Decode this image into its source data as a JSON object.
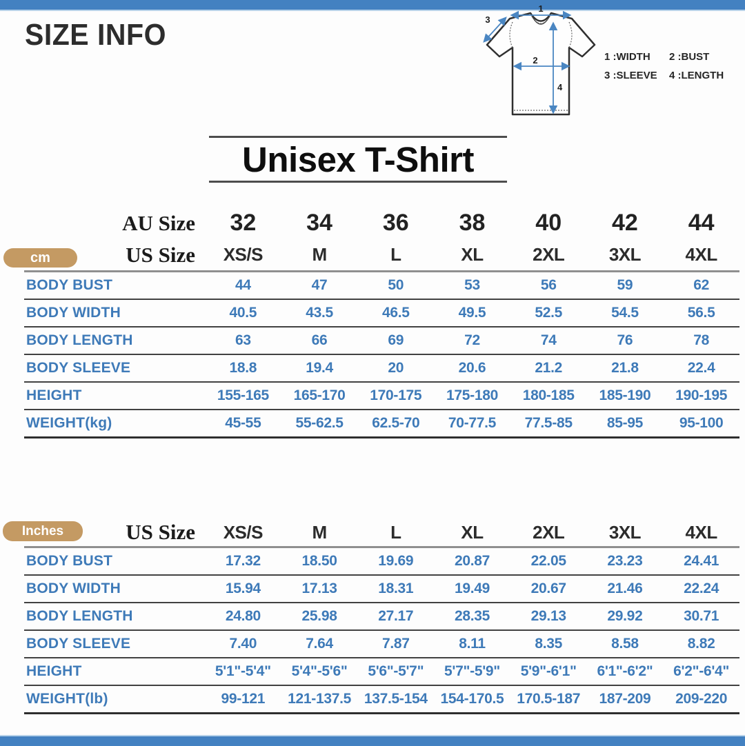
{
  "page": {
    "heading": "SIZE INFO",
    "product_title": "Unisex T-Shirt"
  },
  "diagram": {
    "marker_1": "1",
    "marker_2": "2",
    "marker_3": "3",
    "marker_4": "4",
    "legend": [
      "1 :WIDTH",
      "2 :BUST",
      "3 :SLEEVE",
      "4 :LENGTH"
    ]
  },
  "cm": {
    "unit": "cm",
    "au_label": "AU Size",
    "us_label": "US Size",
    "au_sizes": [
      "32",
      "34",
      "36",
      "38",
      "40",
      "42",
      "44"
    ],
    "us_sizes": [
      "XS/S",
      "M",
      "L",
      "XL",
      "2XL",
      "3XL",
      "4XL"
    ],
    "rows": [
      {
        "label": "BODY BUST",
        "values": [
          "44",
          "47",
          "50",
          "53",
          "56",
          "59",
          "62"
        ]
      },
      {
        "label": "BODY WIDTH",
        "values": [
          "40.5",
          "43.5",
          "46.5",
          "49.5",
          "52.5",
          "54.5",
          "56.5"
        ]
      },
      {
        "label": "BODY LENGTH",
        "values": [
          "63",
          "66",
          "69",
          "72",
          "74",
          "76",
          "78"
        ]
      },
      {
        "label": "BODY SLEEVE",
        "values": [
          "18.8",
          "19.4",
          "20",
          "20.6",
          "21.2",
          "21.8",
          "22.4"
        ]
      },
      {
        "label": "HEIGHT",
        "values": [
          "155-165",
          "165-170",
          "170-175",
          "175-180",
          "180-185",
          "185-190",
          "190-195"
        ]
      },
      {
        "label": "WEIGHT(kg)",
        "values": [
          "45-55",
          "55-62.5",
          "62.5-70",
          "70-77.5",
          "77.5-85",
          "85-95",
          "95-100"
        ]
      }
    ]
  },
  "inch": {
    "unit": "Inches",
    "us_label": "US Size",
    "us_sizes": [
      "XS/S",
      "M",
      "L",
      "XL",
      "2XL",
      "3XL",
      "4XL"
    ],
    "rows": [
      {
        "label": "BODY BUST",
        "values": [
          "17.32",
          "18.50",
          "19.69",
          "20.87",
          "22.05",
          "23.23",
          "24.41"
        ]
      },
      {
        "label": "BODY WIDTH",
        "values": [
          "15.94",
          "17.13",
          "18.31",
          "19.49",
          "20.67",
          "21.46",
          "22.24"
        ]
      },
      {
        "label": "BODY LENGTH",
        "values": [
          "24.80",
          "25.98",
          "27.17",
          "28.35",
          "29.13",
          "29.92",
          "30.71"
        ]
      },
      {
        "label": "BODY SLEEVE",
        "values": [
          "7.40",
          "7.64",
          "7.87",
          "8.11",
          "8.35",
          "8.58",
          "8.82"
        ]
      },
      {
        "label": "HEIGHT",
        "values": [
          "5'1\"-5'4\"",
          "5'4\"-5'6\"",
          "5'6\"-5'7\"",
          "5'7\"-5'9\"",
          "5'9\"-6'1\"",
          "6'1\"-6'2\"",
          "6'2\"-6'4\""
        ]
      },
      {
        "label": "WEIGHT(lb)",
        "values": [
          "99-121",
          "121-137.5",
          "137.5-154",
          "154-170.5",
          "170.5-187",
          "187-209",
          "209-220"
        ]
      }
    ]
  },
  "colors": {
    "accent_bar_blue": "#4381c1",
    "table_text_blue": "#3e7ab8",
    "unit_badge_tan": "#c49a63",
    "heading_dark": "#2d2d2d"
  }
}
